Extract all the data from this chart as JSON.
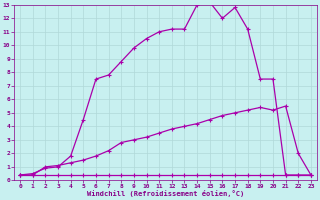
{
  "xlabel": "Windchill (Refroidissement éolien,°C)",
  "background_color": "#c8f0f0",
  "grid_color": "#b0d8d8",
  "line_color": "#aa00aa",
  "xlim": [
    -0.5,
    23.5
  ],
  "ylim": [
    0,
    13
  ],
  "xticks": [
    0,
    1,
    2,
    3,
    4,
    5,
    6,
    7,
    8,
    9,
    10,
    11,
    12,
    13,
    14,
    15,
    16,
    17,
    18,
    19,
    20,
    21,
    22,
    23
  ],
  "yticks": [
    0,
    1,
    2,
    3,
    4,
    5,
    6,
    7,
    8,
    9,
    10,
    11,
    12,
    13
  ],
  "series1_x": [
    0,
    1,
    2,
    3,
    4,
    5,
    6,
    7,
    8,
    9,
    10,
    11,
    12,
    13,
    14,
    15,
    16,
    17,
    18,
    19,
    20,
    21,
    22,
    23
  ],
  "series1_y": [
    0.4,
    0.5,
    0.9,
    1.0,
    1.8,
    4.5,
    7.5,
    7.8,
    8.8,
    9.8,
    10.5,
    11.0,
    11.2,
    11.2,
    13.0,
    13.2,
    12.0,
    12.8,
    11.2,
    7.5,
    7.5,
    0.4,
    0.4,
    0.4
  ],
  "series2_x": [
    0,
    1,
    2,
    3,
    4,
    5,
    6,
    7,
    8,
    9,
    10,
    11,
    12,
    13,
    14,
    15,
    16,
    17,
    18,
    19,
    20,
    21,
    22,
    23
  ],
  "series2_y": [
    0.4,
    0.4,
    1.0,
    1.1,
    1.3,
    1.5,
    1.8,
    2.2,
    2.8,
    3.0,
    3.2,
    3.5,
    3.8,
    4.0,
    4.2,
    4.5,
    4.8,
    5.0,
    5.2,
    5.4,
    5.2,
    5.5,
    2.0,
    0.4
  ],
  "series3_x": [
    0,
    1,
    2,
    3,
    4,
    5,
    6,
    7,
    8,
    9,
    10,
    11,
    12,
    13,
    14,
    15,
    16,
    17,
    18,
    19,
    20,
    21,
    22,
    23
  ],
  "series3_y": [
    0.4,
    0.4,
    0.4,
    0.4,
    0.4,
    0.4,
    0.4,
    0.4,
    0.4,
    0.4,
    0.4,
    0.4,
    0.4,
    0.4,
    0.4,
    0.4,
    0.4,
    0.4,
    0.4,
    0.4,
    0.4,
    0.4,
    0.4,
    0.4
  ]
}
